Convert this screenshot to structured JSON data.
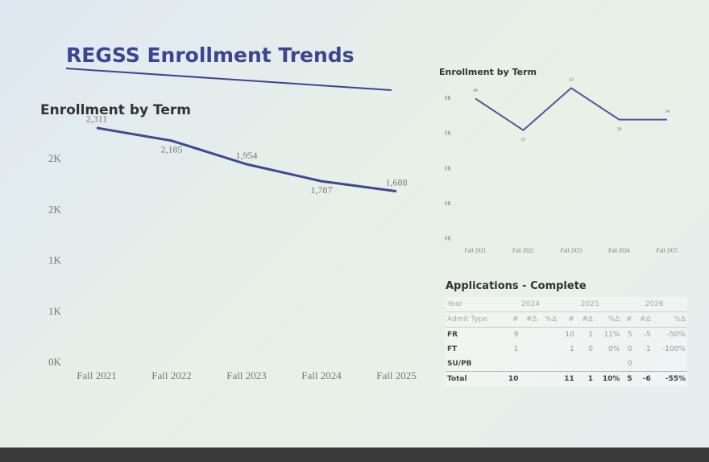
{
  "title": "REGSS Enrollment Trends",
  "chart_data": [
    {
      "type": "line",
      "title": "Enrollment by Term",
      "categories": [
        "Fall 2021",
        "Fall 2022",
        "Fall 2023",
        "Fall 2024",
        "Fall 2025"
      ],
      "values": [
        2311,
        2185,
        1954,
        1787,
        1688
      ],
      "value_labels": [
        "2,311",
        "2,185",
        "1,954",
        "1,787",
        "1,688"
      ],
      "color": "#3d4a8f",
      "ylim": [
        0,
        2500
      ],
      "yticks": [
        {
          "value": 0,
          "label": "0K"
        },
        {
          "value": 500,
          "label": "1K"
        },
        {
          "value": 1000,
          "label": "1K"
        },
        {
          "value": 1500,
          "label": "2K"
        },
        {
          "value": 2000,
          "label": "2K"
        }
      ]
    },
    {
      "type": "line",
      "title": "Enrollment by Term",
      "categories": [
        "Fall 2021",
        "Fall 2022",
        "Fall 2023",
        "Fall 2024",
        "Fall 2025"
      ],
      "values": [
        40,
        31,
        43,
        34,
        34
      ],
      "color": "#4a5a9a",
      "ylim": [
        0,
        44
      ],
      "yticks": [
        {
          "value": 0,
          "label": "0K"
        },
        {
          "value": 10,
          "label": "0K"
        },
        {
          "value": 20,
          "label": "0K"
        },
        {
          "value": 30,
          "label": "0K"
        },
        {
          "value": 40,
          "label": "0K"
        }
      ]
    }
  ],
  "table": {
    "title": "Applications - Complete",
    "year_header": [
      "Year",
      "2024",
      "2025",
      "2026"
    ],
    "columns": [
      "Admit Type",
      "#",
      "#Δ",
      "%Δ",
      "#",
      "#Δ",
      "%Δ",
      "#",
      "#Δ",
      "%Δ"
    ],
    "rows": [
      [
        "FR",
        "9",
        null,
        null,
        "10",
        "1",
        "11%",
        "5",
        "-5",
        "-50%"
      ],
      [
        "FT",
        "1",
        null,
        null,
        "1",
        "0",
        "0%",
        "0",
        "-1",
        "-100%"
      ],
      [
        "SU/PB",
        null,
        null,
        null,
        null,
        null,
        null,
        "0",
        null,
        null
      ],
      [
        "Total",
        "10",
        null,
        null,
        "11",
        "1",
        "10%",
        "5",
        "-6",
        "-55%"
      ]
    ]
  }
}
